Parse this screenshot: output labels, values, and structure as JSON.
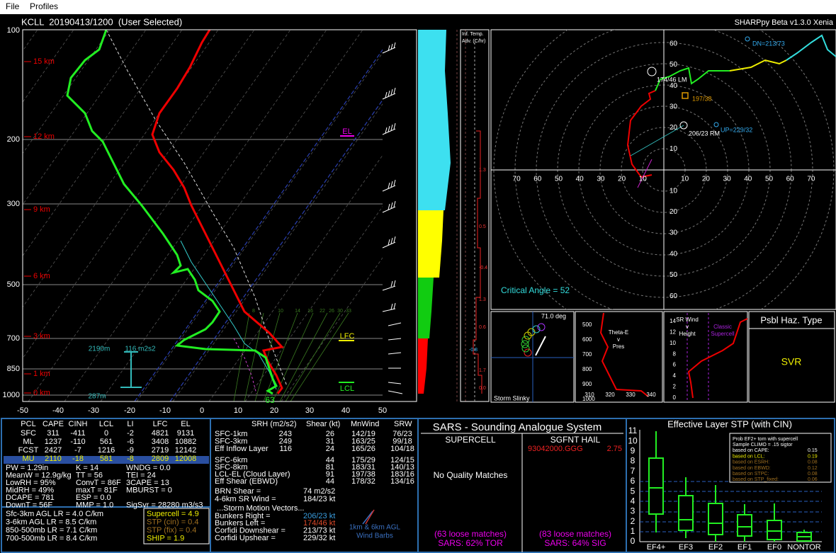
{
  "menu": {
    "items": [
      "File",
      "Profiles"
    ]
  },
  "header": {
    "title": "KCLL  20190413/1200  (User Selected)",
    "version": "SHARPpy Beta v1.3.0 Xenia"
  },
  "skewt": {
    "pressure_labels": [
      "100",
      "200",
      "300",
      "500",
      "700",
      "850",
      "1000"
    ],
    "height_labels": [
      "15 km",
      "12 km",
      "9 km",
      "6 km",
      "3 km",
      "1 km",
      "0 km"
    ],
    "temperature_labels": [
      "-50",
      "-40",
      "-30",
      "-20",
      "-10",
      "0",
      "10",
      "20",
      "30",
      "40",
      "50"
    ],
    "mixing_ratio_labels": [
      "8",
      "10",
      "14",
      "16",
      "22",
      "26",
      "30",
      "33"
    ],
    "markers": {
      "el": "EL",
      "lfc": "LFC",
      "lcl": "LCL"
    },
    "annotations": {
      "eff_top": "2190m",
      "eff_srh": "116 m2s2",
      "eff_bottom": "287m",
      "surface_mixing": "63"
    }
  },
  "inferred_temp_advection": {
    "title": [
      "Inf. Temp.",
      "Adv. (C/hr)"
    ],
    "values": [
      "1.3",
      "0.5",
      "-0.4",
      "1.3",
      "0.6",
      "-0.8",
      "1.7",
      "0.0"
    ]
  },
  "hodograph": {
    "ring_labels": [
      "10",
      "20",
      "30",
      "40",
      "50",
      "60",
      "70"
    ],
    "annotations": {
      "dn": "DN=213/73",
      "lm": "174/46 LM",
      "mean": "197/38",
      "rm": "206/23 RM",
      "up": "UP=229/32",
      "critical_angle": "Critical Angle = 52"
    }
  },
  "storm_slinky": {
    "angle": "71.0 deg",
    "title": "Storm Slinky"
  },
  "theta_e": {
    "title": [
      "Theta-E",
      "v",
      "Pres"
    ],
    "pressure_labels": [
      "500",
      "600",
      "700",
      "800",
      "900",
      "1000"
    ],
    "theta_labels": [
      "310",
      "320",
      "330",
      "340"
    ]
  },
  "sr_wind": {
    "title": [
      "SR Wind",
      "v",
      "Height"
    ],
    "supercell": [
      "Classic",
      "Supercell"
    ],
    "height_labels": [
      "14",
      "12",
      "10",
      "8",
      "6",
      "4",
      "2",
      "0"
    ]
  },
  "hazard": {
    "title": "Psbl Haz. Type",
    "value": "SVR"
  },
  "parcels": {
    "headers": [
      "PCL",
      "CAPE",
      "CINH",
      "LCL",
      "LI",
      "LFC",
      "EL"
    ],
    "rows": [
      [
        "SFC",
        "311",
        "-411",
        "0",
        "-2",
        "4821",
        "9131"
      ],
      [
        "ML",
        "1237",
        "-110",
        "561",
        "-6",
        "3408",
        "10882"
      ],
      [
        "FCST",
        "2427",
        "-7",
        "1216",
        "-9",
        "2719",
        "12142"
      ],
      [
        "MU",
        "2110",
        "-18",
        "581",
        "-8",
        "2809",
        "12008"
      ]
    ]
  },
  "indices": [
    [
      "PW = 1.29in",
      "K = 14",
      "WNDG = 0.0"
    ],
    [
      "MeanW = 12.9g/kg",
      "TT = 56",
      "TEI = 24"
    ],
    [
      "LowRH = 95%",
      "ConvT = 86F",
      "3CAPE = 13"
    ],
    [
      "MidRH = 49%",
      "maxT = 81F",
      "MBURST = 0"
    ],
    [
      "DCAPE = 781",
      "ESP = 0.0"
    ],
    [
      "DownT = 56F",
      "MMP = 1.0",
      "SigSvr = 28280 m3/s3"
    ]
  ],
  "lapse_rates": [
    "Sfc-3km AGL LR = 4.0 C/km",
    "3-6km AGL LR = 8.5 C/km",
    "850-500mb LR = 7.1 C/km",
    "700-500mb LR = 8.4 C/km"
  ],
  "composite": [
    "Supercell = 4.9",
    "STP (cin) = 0.4",
    "STP (fix) = 0.4",
    "SHIP = 1.9"
  ],
  "kinematics": {
    "headers": [
      "SRH (m2/s2)",
      "Shear (kt)",
      "MnWind",
      "SRW"
    ],
    "layers_srh": [
      [
        "SFC-1km",
        "243",
        "26",
        "142/19",
        "76/23"
      ],
      [
        "SFC-3km",
        "249",
        "31",
        "163/25",
        "99/18"
      ],
      [
        "Eff Inflow Layer",
        "116",
        "24",
        "165/26",
        "104/18"
      ]
    ],
    "layers": [
      [
        "SFC-6km",
        "44",
        "175/29",
        "124/15"
      ],
      [
        "SFC-8km",
        "81",
        "183/31",
        "140/13"
      ],
      [
        "LCL-EL (Cloud Layer)",
        "91",
        "197/38",
        "183/16"
      ],
      [
        "Eff Shear (EBWD)",
        "44",
        "178/32",
        "134/16"
      ]
    ],
    "brn": [
      "BRN Shear =",
      "74 m2/s2"
    ],
    "sr_wind": [
      "4-6km SR Wind =",
      "184/23 kt"
    ],
    "motion_title": "...Storm Motion Vectors...",
    "motions": [
      [
        "Bunkers Right =",
        "206/23 kt"
      ],
      [
        "Bunkers Left =",
        "174/46 kt"
      ],
      [
        "Corfidi Downshear =",
        "213/73 kt"
      ],
      [
        "Corfidi Upshear =",
        "229/32 kt"
      ]
    ],
    "barb_legend": [
      "1km & 6km AGL",
      "Wind Barbs"
    ]
  },
  "sars": {
    "title": "SARS - Sounding Analogue System",
    "supercell": {
      "title": "SUPERCELL",
      "matches": "No Quality Matches",
      "loose": "(63 loose matches)",
      "summary": "SARS: 62% TOR"
    },
    "hail": {
      "title": "SGFNT HAIL",
      "match": "93042000.GGG",
      "match_size": "2.75",
      "loose": "(83 loose matches)",
      "summary": "SARS: 64% SIG"
    }
  },
  "stp": {
    "title": "Effective Layer STP (with CIN)",
    "yticks": [
      "0",
      "1",
      "2",
      "3",
      "4",
      "5",
      "6",
      "7",
      "8",
      "9",
      "10",
      "11"
    ],
    "categories": [
      "EF4+",
      "EF3",
      "EF2",
      "EF1",
      "EF0",
      "NONTOR"
    ],
    "legend": [
      [
        "Prob EF2+ torn with supercell"
      ],
      [
        "Sample CLIMO = .15 sigtor"
      ],
      [
        "based on CAPE:",
        "0.15"
      ],
      [
        "based on LCL:",
        "0.19"
      ],
      [
        "based on ESRH:",
        "0.08"
      ],
      [
        "based on EBWD:",
        "0.12"
      ],
      [
        "based on STPC:",
        "0.08"
      ],
      [
        "based on STP_fixed:",
        "0.06"
      ]
    ]
  }
}
